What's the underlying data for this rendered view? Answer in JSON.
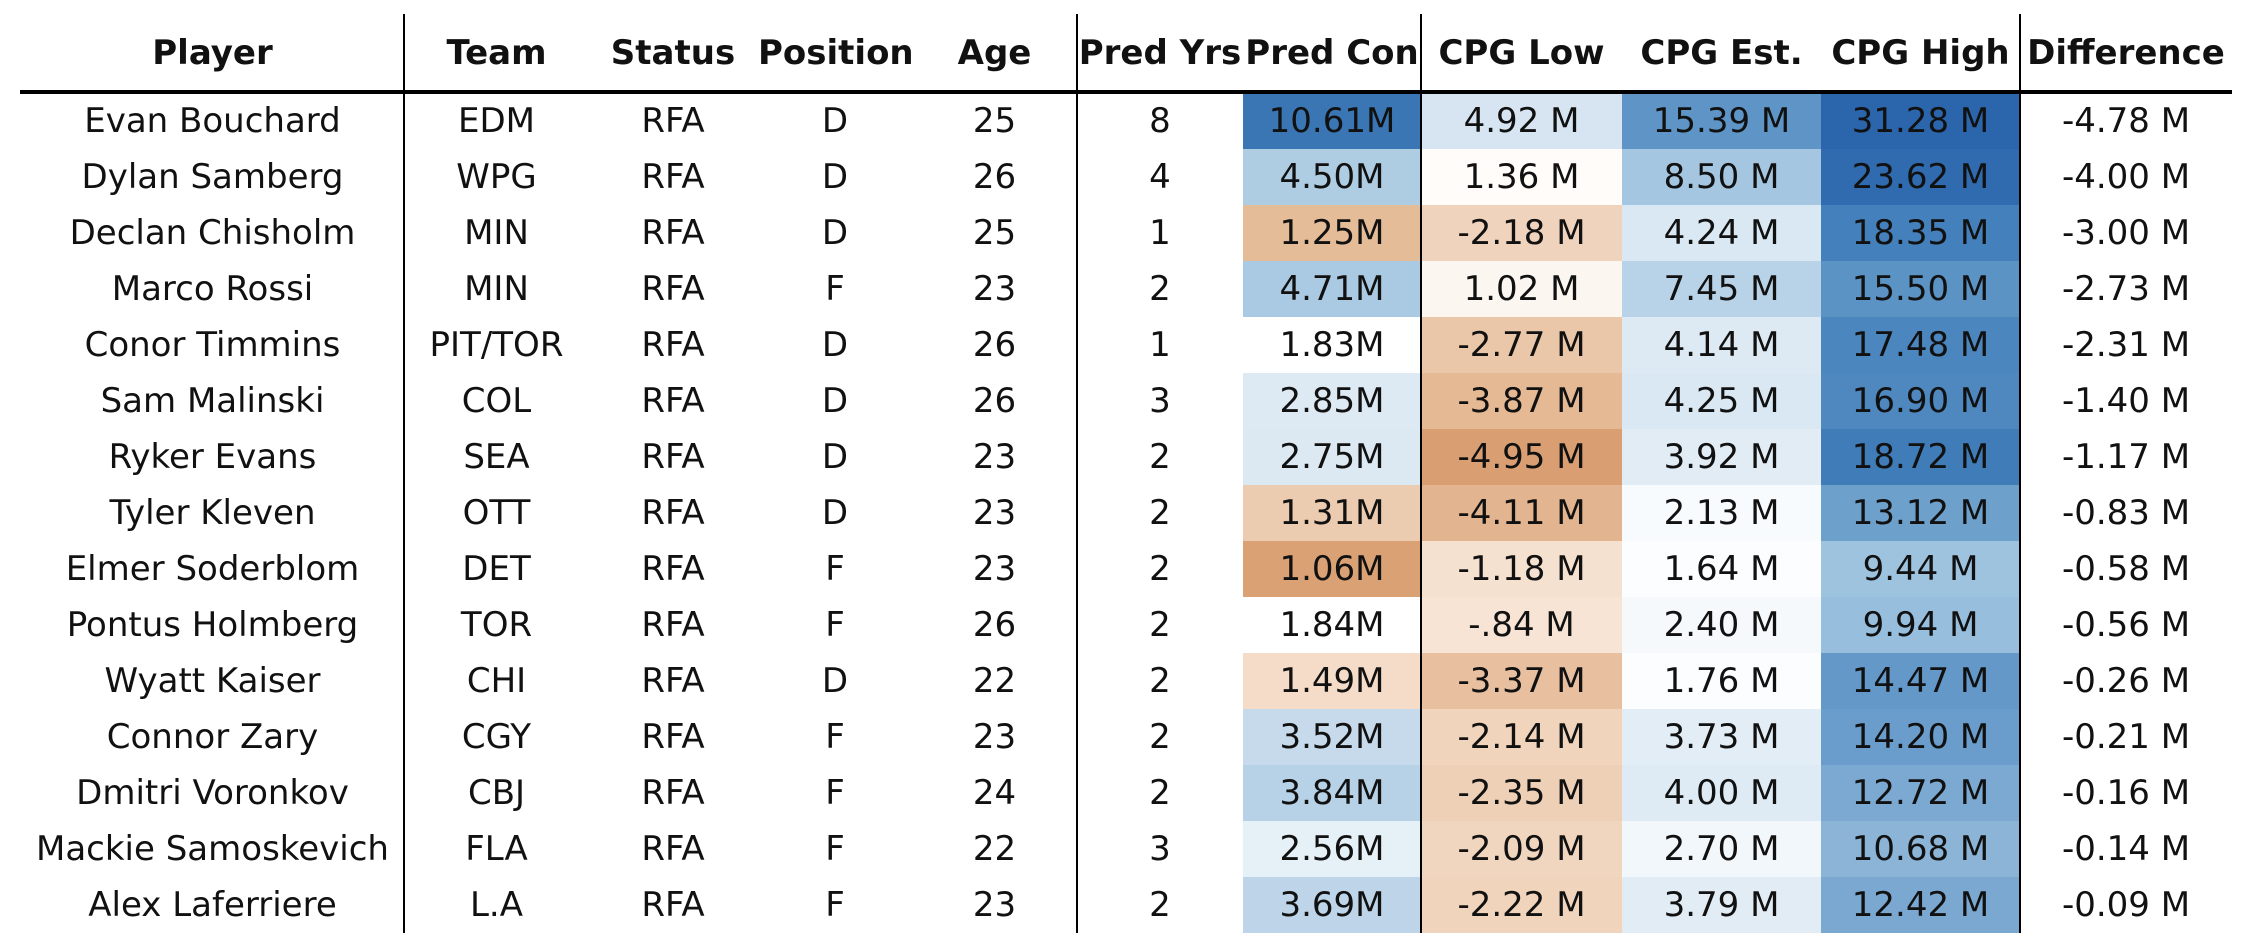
{
  "chart_data": {
    "type": "table",
    "columns": [
      "Player",
      "Team",
      "Status",
      "Position",
      "Age",
      "Pred Yrs",
      "Pred Con",
      "CPG Low",
      "CPG Est.",
      "CPG High",
      "Difference"
    ],
    "rows": [
      {
        "player": "Evan Bouchard",
        "team": "EDM",
        "status": "RFA",
        "position": "D",
        "age": "25",
        "pred_yrs": "8",
        "pred_con": "10.61M",
        "cpg_low": "4.92 M",
        "cpg_est": "15.39 M",
        "cpg_high": "31.28 M",
        "difference": "-4.78 M"
      },
      {
        "player": "Dylan Samberg",
        "team": "WPG",
        "status": "RFA",
        "position": "D",
        "age": "26",
        "pred_yrs": "4",
        "pred_con": "4.50M",
        "cpg_low": "1.36 M",
        "cpg_est": "8.50 M",
        "cpg_high": "23.62 M",
        "difference": "-4.00 M"
      },
      {
        "player": "Declan Chisholm",
        "team": "MIN",
        "status": "RFA",
        "position": "D",
        "age": "25",
        "pred_yrs": "1",
        "pred_con": "1.25M",
        "cpg_low": "-2.18 M",
        "cpg_est": "4.24 M",
        "cpg_high": "18.35 M",
        "difference": "-3.00 M"
      },
      {
        "player": "Marco Rossi",
        "team": "MIN",
        "status": "RFA",
        "position": "F",
        "age": "23",
        "pred_yrs": "2",
        "pred_con": "4.71M",
        "cpg_low": "1.02 M",
        "cpg_est": "7.45 M",
        "cpg_high": "15.50 M",
        "difference": "-2.73 M"
      },
      {
        "player": "Conor Timmins",
        "team": "PIT/TOR",
        "status": "RFA",
        "position": "D",
        "age": "26",
        "pred_yrs": "1",
        "pred_con": "1.83M",
        "cpg_low": "-2.77 M",
        "cpg_est": "4.14 M",
        "cpg_high": "17.48 M",
        "difference": "-2.31 M"
      },
      {
        "player": "Sam Malinski",
        "team": "COL",
        "status": "RFA",
        "position": "D",
        "age": "26",
        "pred_yrs": "3",
        "pred_con": "2.85M",
        "cpg_low": "-3.87 M",
        "cpg_est": "4.25 M",
        "cpg_high": "16.90 M",
        "difference": "-1.40 M"
      },
      {
        "player": "Ryker Evans",
        "team": "SEA",
        "status": "RFA",
        "position": "D",
        "age": "23",
        "pred_yrs": "2",
        "pred_con": "2.75M",
        "cpg_low": "-4.95 M",
        "cpg_est": "3.92 M",
        "cpg_high": "18.72 M",
        "difference": "-1.17 M"
      },
      {
        "player": "Tyler Kleven",
        "team": "OTT",
        "status": "RFA",
        "position": "D",
        "age": "23",
        "pred_yrs": "2",
        "pred_con": "1.31M",
        "cpg_low": "-4.11 M",
        "cpg_est": "2.13 M",
        "cpg_high": "13.12 M",
        "difference": "-0.83 M"
      },
      {
        "player": "Elmer Soderblom",
        "team": "DET",
        "status": "RFA",
        "position": "F",
        "age": "23",
        "pred_yrs": "2",
        "pred_con": "1.06M",
        "cpg_low": "-1.18 M",
        "cpg_est": "1.64 M",
        "cpg_high": "9.44 M",
        "difference": "-0.58 M"
      },
      {
        "player": "Pontus Holmberg",
        "team": "TOR",
        "status": "RFA",
        "position": "F",
        "age": "26",
        "pred_yrs": "2",
        "pred_con": "1.84M",
        "cpg_low": "-.84 M",
        "cpg_est": "2.40 M",
        "cpg_high": "9.94 M",
        "difference": "-0.56 M"
      },
      {
        "player": "Wyatt Kaiser",
        "team": "CHI",
        "status": "RFA",
        "position": "D",
        "age": "22",
        "pred_yrs": "2",
        "pred_con": "1.49M",
        "cpg_low": "-3.37 M",
        "cpg_est": "1.76 M",
        "cpg_high": "14.47 M",
        "difference": "-0.26 M"
      },
      {
        "player": "Connor Zary",
        "team": "CGY",
        "status": "RFA",
        "position": "F",
        "age": "23",
        "pred_yrs": "2",
        "pred_con": "3.52M",
        "cpg_low": "-2.14 M",
        "cpg_est": "3.73 M",
        "cpg_high": "14.20 M",
        "difference": "-0.21 M"
      },
      {
        "player": "Dmitri Voronkov",
        "team": "CBJ",
        "status": "RFA",
        "position": "F",
        "age": "24",
        "pred_yrs": "2",
        "pred_con": "3.84M",
        "cpg_low": "-2.35 M",
        "cpg_est": "4.00 M",
        "cpg_high": "12.72 M",
        "difference": "-0.16 M"
      },
      {
        "player": "Mackie Samoskevich",
        "team": "FLA",
        "status": "RFA",
        "position": "F",
        "age": "22",
        "pred_yrs": "3",
        "pred_con": "2.56M",
        "cpg_low": "-2.09 M",
        "cpg_est": "2.70 M",
        "cpg_high": "10.68 M",
        "difference": "-0.14 M"
      },
      {
        "player": "Alex Laferriere",
        "team": "L.A",
        "status": "RFA",
        "position": "F",
        "age": "23",
        "pred_yrs": "2",
        "pred_con": "3.69M",
        "cpg_low": "-2.22 M",
        "cpg_est": "3.79 M",
        "cpg_high": "12.42 M",
        "difference": "-0.09 M"
      }
    ],
    "cell_fill_colors": {
      "pred_con": [
        "#3a76b4",
        "#aecde3",
        "#e4bc98",
        "#a9cae2",
        "#ffffff",
        "#dde9f3",
        "#dce9f3",
        "#ecccb0",
        "#daa175",
        "#ffffff",
        "#f5dcc9",
        "#c7daeb",
        "#b7d2e7",
        "#e6f0f7",
        "#bed5e9"
      ],
      "cpg_low": [
        "#d6e5f1",
        "#fffcfa",
        "#f0d3bd",
        "#fcf6f1",
        "#ebc7a9",
        "#e6b995",
        "#d99f73",
        "#e2b48f",
        "#f5e1d0",
        "#f7e4d5",
        "#e8c0a0",
        "#f0d4bc",
        "#eed0b7",
        "#f0d5bf",
        "#f0d4bc"
      ],
      "cpg_est": [
        "#5e95c6",
        "#a4c6e0",
        "#dae8f3",
        "#b8d3e8",
        "#dde9f3",
        "#dae8f3",
        "#e1ecf5",
        "#f8fbfd",
        "#fcfdfe",
        "#f5f9fc",
        "#fcfdfe",
        "#e3edf6",
        "#deeaf4",
        "#f2f7fb",
        "#e1ecf5"
      ],
      "cpg_high": [
        "#2b66ac",
        "#2f6bae",
        "#4480bb",
        "#5c93c5",
        "#4c86be",
        "#4e88bf",
        "#3f7cb8",
        "#6ea0cc",
        "#9ec3df",
        "#98bedd",
        "#6498c9",
        "#6a9dcb",
        "#7ba9d2",
        "#8bb4d7",
        "#7aa8d1"
      ]
    }
  }
}
